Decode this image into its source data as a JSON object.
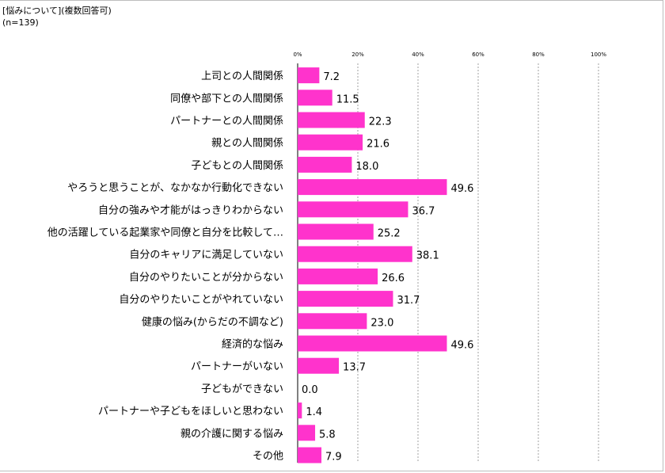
{
  "header": {
    "title": "[悩みについて](複数回答可)",
    "sample": "(n=139)"
  },
  "chart_data": {
    "type": "bar",
    "orientation": "horizontal",
    "title": "[悩みについて](複数回答可)",
    "subtitle": "(n=139)",
    "xlabel": "",
    "ylabel": "",
    "xlim": [
      0,
      100
    ],
    "ticks": [
      0,
      20,
      40,
      60,
      80,
      100
    ],
    "tick_labels": [
      "0%",
      "20%",
      "40%",
      "60%",
      "80%",
      "100%"
    ],
    "grid": true,
    "bar_color": "#ff33cc",
    "categories": [
      "上司との人間関係",
      "同僚や部下との人間関係",
      "パートナーとの人間関係",
      "親との人間関係",
      "子どもとの人間関係",
      "やろうと思うことが、なかなか行動化できない",
      "自分の強みや才能がはっきりわからない",
      "他の活躍している起業家や同僚と自分を比較して…",
      "自分のキャリアに満足していない",
      "自分のやりたいことが分からない",
      "自分のやりたいことがやれていない",
      "健康の悩み(からだの不調など)",
      "経済的な悩み",
      "パートナーがいない",
      "子どもができない",
      "パートナーや子どもをほしいと思わない",
      "親の介護に関する悩み",
      "その他"
    ],
    "values": [
      7.2,
      11.5,
      22.3,
      21.6,
      18.0,
      49.6,
      36.7,
      25.2,
      38.1,
      26.6,
      31.7,
      23.0,
      49.6,
      13.7,
      0.0,
      1.4,
      5.8,
      7.9
    ],
    "value_labels": [
      "7.2",
      "11.5",
      "22.3",
      "21.6",
      "18.0",
      "49.6",
      "36.7",
      "25.2",
      "38.1",
      "26.6",
      "31.7",
      "23.0",
      "49.6",
      "13.7",
      "0.0",
      "1.4",
      "5.8",
      "7.9"
    ]
  }
}
